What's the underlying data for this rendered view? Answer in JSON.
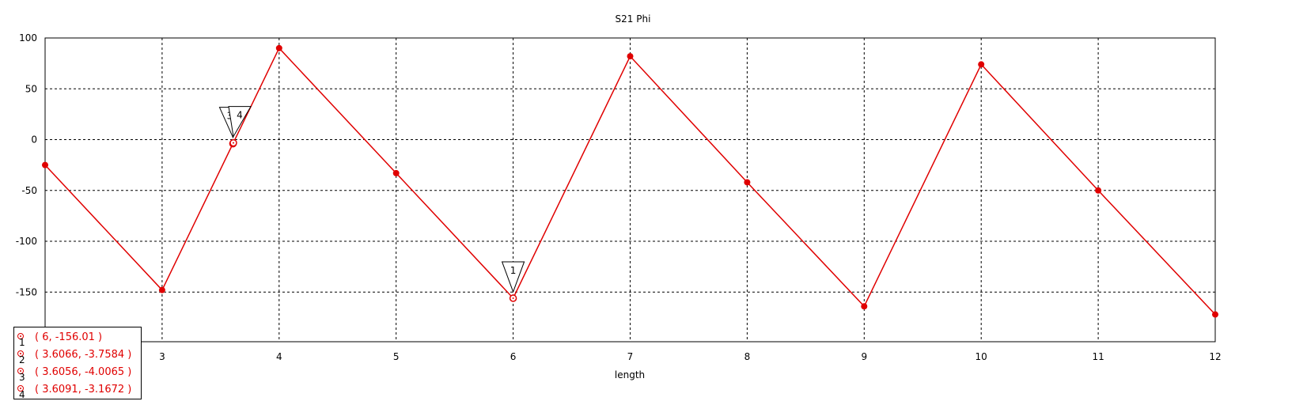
{
  "chart_data": {
    "type": "line",
    "title": "S21 Phi",
    "xlabel": "length",
    "ylabel": "",
    "xlim": [
      2,
      12
    ],
    "ylim": [
      -170,
      100
    ],
    "xticks": [
      3,
      4,
      5,
      6,
      7,
      8,
      9,
      10,
      11,
      12
    ],
    "yticks": [
      100,
      50,
      0,
      -50,
      -100,
      -150
    ],
    "grid": true,
    "line_color": "#e00000",
    "series": [
      {
        "x": [
          2,
          3,
          4,
          5,
          6,
          7,
          8,
          9,
          10,
          11,
          12
        ],
        "values": [
          -25,
          -148,
          90,
          -33,
          -156,
          82,
          -42,
          -164,
          74,
          -50,
          -172
        ]
      }
    ],
    "markers": [
      {
        "id": "1",
        "x": 6,
        "y": -156.01,
        "label": "( 6, -156.01 )"
      },
      {
        "id": "2",
        "x": 3.6066,
        "y": -3.7584,
        "label": "( 3.6066, -3.7584 )"
      },
      {
        "id": "3",
        "x": 3.6056,
        "y": -4.0065,
        "label": "( 3.6056, -4.0065 )"
      },
      {
        "id": "4",
        "x": 3.6091,
        "y": -3.1672,
        "label": "( 3.6091, -3.1672 )"
      }
    ]
  }
}
